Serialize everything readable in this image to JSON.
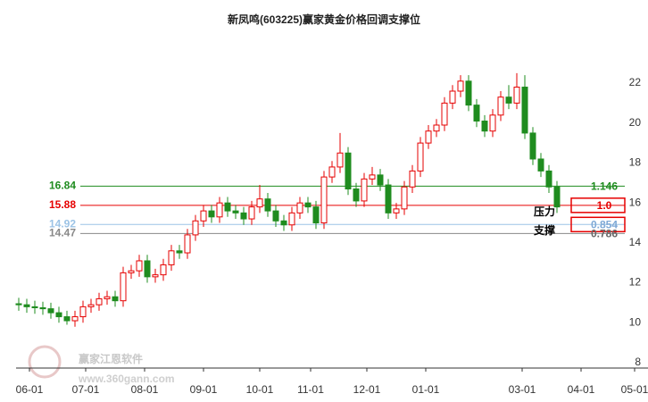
{
  "chart_data": {
    "type": "candlestick",
    "title": "新凤鸣(603225)赢家黄金价格回调支撑位",
    "xlim": [
      0,
      236
    ],
    "xticks": [
      {
        "value": 5,
        "label": "06-01"
      },
      {
        "value": 26,
        "label": "07-01"
      },
      {
        "value": 48,
        "label": "08-01"
      },
      {
        "value": 70,
        "label": "09-01"
      },
      {
        "value": 91,
        "label": "10-01"
      },
      {
        "value": 110,
        "label": "11-01"
      },
      {
        "value": 131,
        "label": "12-01"
      },
      {
        "value": 153,
        "label": "01-01"
      },
      {
        "value": 189,
        "label": "03-01"
      },
      {
        "value": 211,
        "label": "04-01"
      },
      {
        "value": 231,
        "label": "05-01"
      }
    ],
    "ylim": [
      7.73,
      24.15
    ],
    "yticks": [
      8,
      10,
      12,
      14,
      16,
      18,
      20,
      22
    ],
    "up_color": "#e60000",
    "down_color": "#1f8c1f",
    "x": [
      1,
      4,
      7,
      10,
      13,
      16,
      19,
      22,
      25,
      28,
      31,
      34,
      37,
      40,
      43,
      46,
      49,
      52,
      55,
      58,
      61,
      64,
      67,
      70,
      73,
      76,
      79,
      82,
      85,
      88,
      91,
      94,
      97,
      100,
      103,
      106,
      109,
      112,
      115,
      118,
      121,
      124,
      127,
      130,
      133,
      136,
      139,
      142,
      145,
      148,
      151,
      154,
      157,
      160,
      163,
      166,
      169,
      172,
      175,
      178,
      181,
      184,
      187,
      190,
      193,
      196,
      199,
      202
    ],
    "open": [
      10.95,
      10.9,
      10.8,
      10.75,
      10.7,
      10.5,
      10.3,
      10.1,
      10.3,
      10.8,
      10.9,
      11.2,
      11.3,
      11.1,
      12.5,
      12.6,
      13.1,
      12.3,
      12.4,
      12.9,
      13.6,
      13.5,
      14.4,
      15.1,
      15.6,
      15.3,
      16.0,
      15.6,
      15.5,
      15.2,
      15.8,
      16.2,
      15.6,
      15.1,
      14.9,
      15.5,
      16.0,
      15.8,
      15.0,
      17.3,
      17.8,
      18.5,
      16.7,
      16.1,
      17.2,
      17.4,
      16.9,
      15.5,
      15.7,
      16.8,
      17.6,
      19.0,
      19.6,
      19.9,
      21.0,
      21.6,
      22.1,
      20.9,
      20.1,
      19.6,
      20.4,
      21.3,
      21.0,
      21.8,
      19.5,
      18.2,
      17.6,
      16.8
    ],
    "high": [
      11.25,
      11.2,
      11.1,
      11.05,
      11.0,
      10.8,
      10.6,
      10.6,
      11.1,
      11.2,
      11.5,
      11.6,
      11.6,
      12.8,
      12.9,
      13.4,
      13.4,
      12.7,
      13.2,
      13.9,
      13.9,
      14.7,
      15.4,
      15.9,
      15.9,
      16.3,
      16.3,
      15.9,
      15.8,
      16.1,
      16.9,
      16.5,
      15.9,
      15.4,
      15.8,
      16.3,
      16.3,
      16.1,
      17.6,
      18.1,
      19.5,
      18.8,
      17.0,
      17.5,
      17.8,
      17.7,
      17.2,
      16.0,
      17.1,
      17.9,
      19.3,
      19.9,
      20.2,
      21.3,
      21.9,
      22.4,
      22.4,
      21.2,
      20.4,
      20.7,
      21.6,
      21.9,
      22.5,
      22.4,
      19.8,
      18.5,
      17.9,
      17.1
    ],
    "low": [
      10.6,
      10.5,
      10.45,
      10.4,
      10.2,
      10.0,
      9.9,
      9.8,
      10.0,
      10.5,
      10.6,
      10.9,
      10.8,
      10.8,
      12.2,
      12.3,
      12.0,
      12.0,
      12.1,
      12.6,
      13.2,
      13.2,
      14.1,
      14.8,
      15.0,
      15.0,
      15.3,
      15.2,
      14.9,
      14.9,
      15.5,
      15.3,
      14.8,
      14.6,
      14.6,
      15.2,
      15.5,
      14.7,
      14.7,
      17.0,
      17.5,
      16.4,
      15.8,
      15.8,
      16.9,
      16.6,
      15.2,
      15.2,
      15.4,
      16.5,
      17.3,
      18.7,
      19.3,
      19.6,
      20.7,
      21.3,
      20.6,
      19.8,
      19.3,
      19.3,
      20.1,
      20.7,
      20.7,
      19.2,
      17.9,
      17.3,
      16.5,
      15.5
    ],
    "close": [
      10.9,
      10.8,
      10.75,
      10.7,
      10.5,
      10.3,
      10.1,
      10.3,
      10.8,
      10.9,
      11.2,
      11.3,
      11.1,
      12.5,
      12.6,
      13.1,
      12.3,
      12.4,
      12.9,
      13.6,
      13.5,
      14.4,
      15.1,
      15.6,
      15.3,
      16.0,
      15.6,
      15.5,
      15.2,
      15.8,
      16.2,
      15.6,
      15.1,
      14.9,
      15.5,
      16.0,
      15.8,
      15.0,
      17.3,
      17.8,
      18.5,
      16.7,
      16.1,
      17.2,
      17.4,
      16.9,
      15.5,
      15.7,
      16.8,
      17.6,
      19.0,
      19.6,
      19.9,
      21.0,
      21.6,
      22.1,
      20.9,
      20.1,
      19.6,
      20.4,
      21.3,
      21.0,
      21.8,
      19.5,
      18.2,
      17.6,
      16.8,
      15.8
    ],
    "levels": [
      {
        "value": 16.84,
        "ratio": 1.146,
        "color": "#1f8c1f"
      },
      {
        "value": 15.88,
        "ratio": 1,
        "ratio_label": "1.0",
        "color": "#e60000",
        "boxed": true
      },
      {
        "value": 14.92,
        "ratio": 0.854,
        "color": "#9cc3e6",
        "boxed": true
      },
      {
        "value": 14.47,
        "ratio": 0.786,
        "color": "#888888"
      }
    ],
    "annotations": [
      "压力",
      "支撑"
    ],
    "watermark": [
      "赢家江恩软件",
      "www.360gann.com"
    ]
  }
}
